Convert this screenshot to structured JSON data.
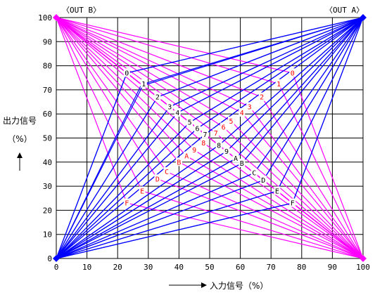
{
  "chart_data": {
    "type": "line",
    "out_a_label": "〈OUT A〉",
    "out_b_label": "〈OUT B〉",
    "xlabel": "入力信号（%）",
    "ylabel_line1": "出力信号",
    "ylabel_line2": "（%）",
    "xlim": [
      0,
      100
    ],
    "ylim": [
      0,
      100
    ],
    "x_ticks": [
      0,
      10,
      20,
      30,
      40,
      50,
      60,
      70,
      80,
      90,
      100
    ],
    "y_ticks": [
      0,
      10,
      20,
      30,
      40,
      50,
      60,
      70,
      80,
      90,
      100
    ],
    "grid": true,
    "colors": {
      "out_a": "#0000ff",
      "out_b": "#ff00ff",
      "out_a_labels": "#000000",
      "out_b_labels": "#ff0000",
      "grid": "#000000",
      "background": "#ffffff"
    },
    "out_a_curves": [
      {
        "name": "0",
        "label_at": [
          23,
          77
        ]
      },
      {
        "name": "1",
        "label_at": [
          28.5,
          72.5
        ]
      },
      {
        "name": "2",
        "label_at": [
          33,
          67
        ]
      },
      {
        "name": "3",
        "label_at": [
          37,
          63
        ]
      },
      {
        "name": "4",
        "label_at": [
          39.5,
          60.5
        ]
      },
      {
        "name": "5",
        "label_at": [
          43.5,
          56.5
        ]
      },
      {
        "name": "6",
        "label_at": [
          46,
          54
        ]
      },
      {
        "name": "7",
        "label_at": [
          48.5,
          51.5
        ]
      },
      {
        "name": "8",
        "label_at": [
          53,
          47
        ]
      },
      {
        "name": "9",
        "label_at": [
          55.5,
          44.5
        ]
      },
      {
        "name": "A",
        "label_at": [
          58.5,
          41.5
        ]
      },
      {
        "name": "B",
        "label_at": [
          60.5,
          39.5
        ]
      },
      {
        "name": "C",
        "label_at": [
          64.5,
          35.5
        ]
      },
      {
        "name": "D",
        "label_at": [
          67.5,
          32.5
        ]
      },
      {
        "name": "E",
        "label_at": [
          72,
          28
        ]
      },
      {
        "name": "F",
        "label_at": [
          77,
          23
        ]
      }
    ],
    "out_b_curves": [
      {
        "name": "0",
        "label_at": [
          77,
          77
        ]
      },
      {
        "name": "1",
        "label_at": [
          72.5,
          72.5
        ]
      },
      {
        "name": "2",
        "label_at": [
          67,
          67
        ]
      },
      {
        "name": "3",
        "label_at": [
          63,
          63
        ]
      },
      {
        "name": "4",
        "label_at": [
          60.5,
          60.5
        ]
      },
      {
        "name": "5",
        "label_at": [
          57,
          57
        ]
      },
      {
        "name": "6",
        "label_at": [
          54.5,
          54.5
        ]
      },
      {
        "name": "7",
        "label_at": [
          52,
          52
        ]
      },
      {
        "name": "8",
        "label_at": [
          48,
          48
        ]
      },
      {
        "name": "9",
        "label_at": [
          45,
          45
        ]
      },
      {
        "name": "A",
        "label_at": [
          42.5,
          42.5
        ]
      },
      {
        "name": "B",
        "label_at": [
          40,
          40
        ]
      },
      {
        "name": "C",
        "label_at": [
          36,
          36
        ]
      },
      {
        "name": "D",
        "label_at": [
          33,
          33
        ]
      },
      {
        "name": "E",
        "label_at": [
          28,
          28
        ]
      },
      {
        "name": "F",
        "label_at": [
          23,
          23
        ]
      }
    ]
  }
}
